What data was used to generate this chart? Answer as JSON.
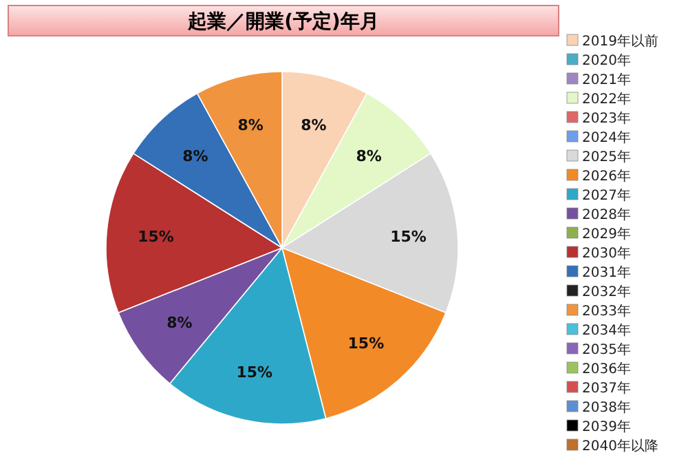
{
  "chart_data": {
    "type": "pie",
    "title": "起業／開業(予定)年月",
    "categories": [
      "2019年以前",
      "2020年",
      "2021年",
      "2022年",
      "2023年",
      "2024年",
      "2025年",
      "2026年",
      "2027年",
      "2028年",
      "2029年",
      "2030年",
      "2031年",
      "2032年",
      "2033年",
      "2034年",
      "2035年",
      "2036年",
      "2037年",
      "2038年",
      "2039年",
      "2040年以降"
    ],
    "values": [
      8,
      0,
      0,
      8,
      0,
      0,
      15,
      15,
      15,
      8,
      0,
      15,
      8,
      0,
      8,
      0,
      0,
      0,
      0,
      0,
      0,
      0
    ],
    "value_labels": [
      "8%",
      null,
      null,
      "8%",
      null,
      null,
      "15%",
      "15%",
      "15%",
      "8%",
      null,
      "15%",
      "8%",
      null,
      "8%",
      null,
      null,
      null,
      null,
      null,
      null,
      null
    ],
    "colors": [
      "#fad3b4",
      "#4bacc6",
      "#9e86c0",
      "#e4f7c6",
      "#e06666",
      "#6d9eeb",
      "#d9d9d9",
      "#f28a28",
      "#2ea8c8",
      "#7451a0",
      "#8db04c",
      "#b83232",
      "#3470b8",
      "#222222",
      "#f09440",
      "#4bc0da",
      "#8a65b8",
      "#9bc45e",
      "#d45050",
      "#5b8fd4",
      "#000000",
      "#c0702a"
    ],
    "legend": "right"
  }
}
